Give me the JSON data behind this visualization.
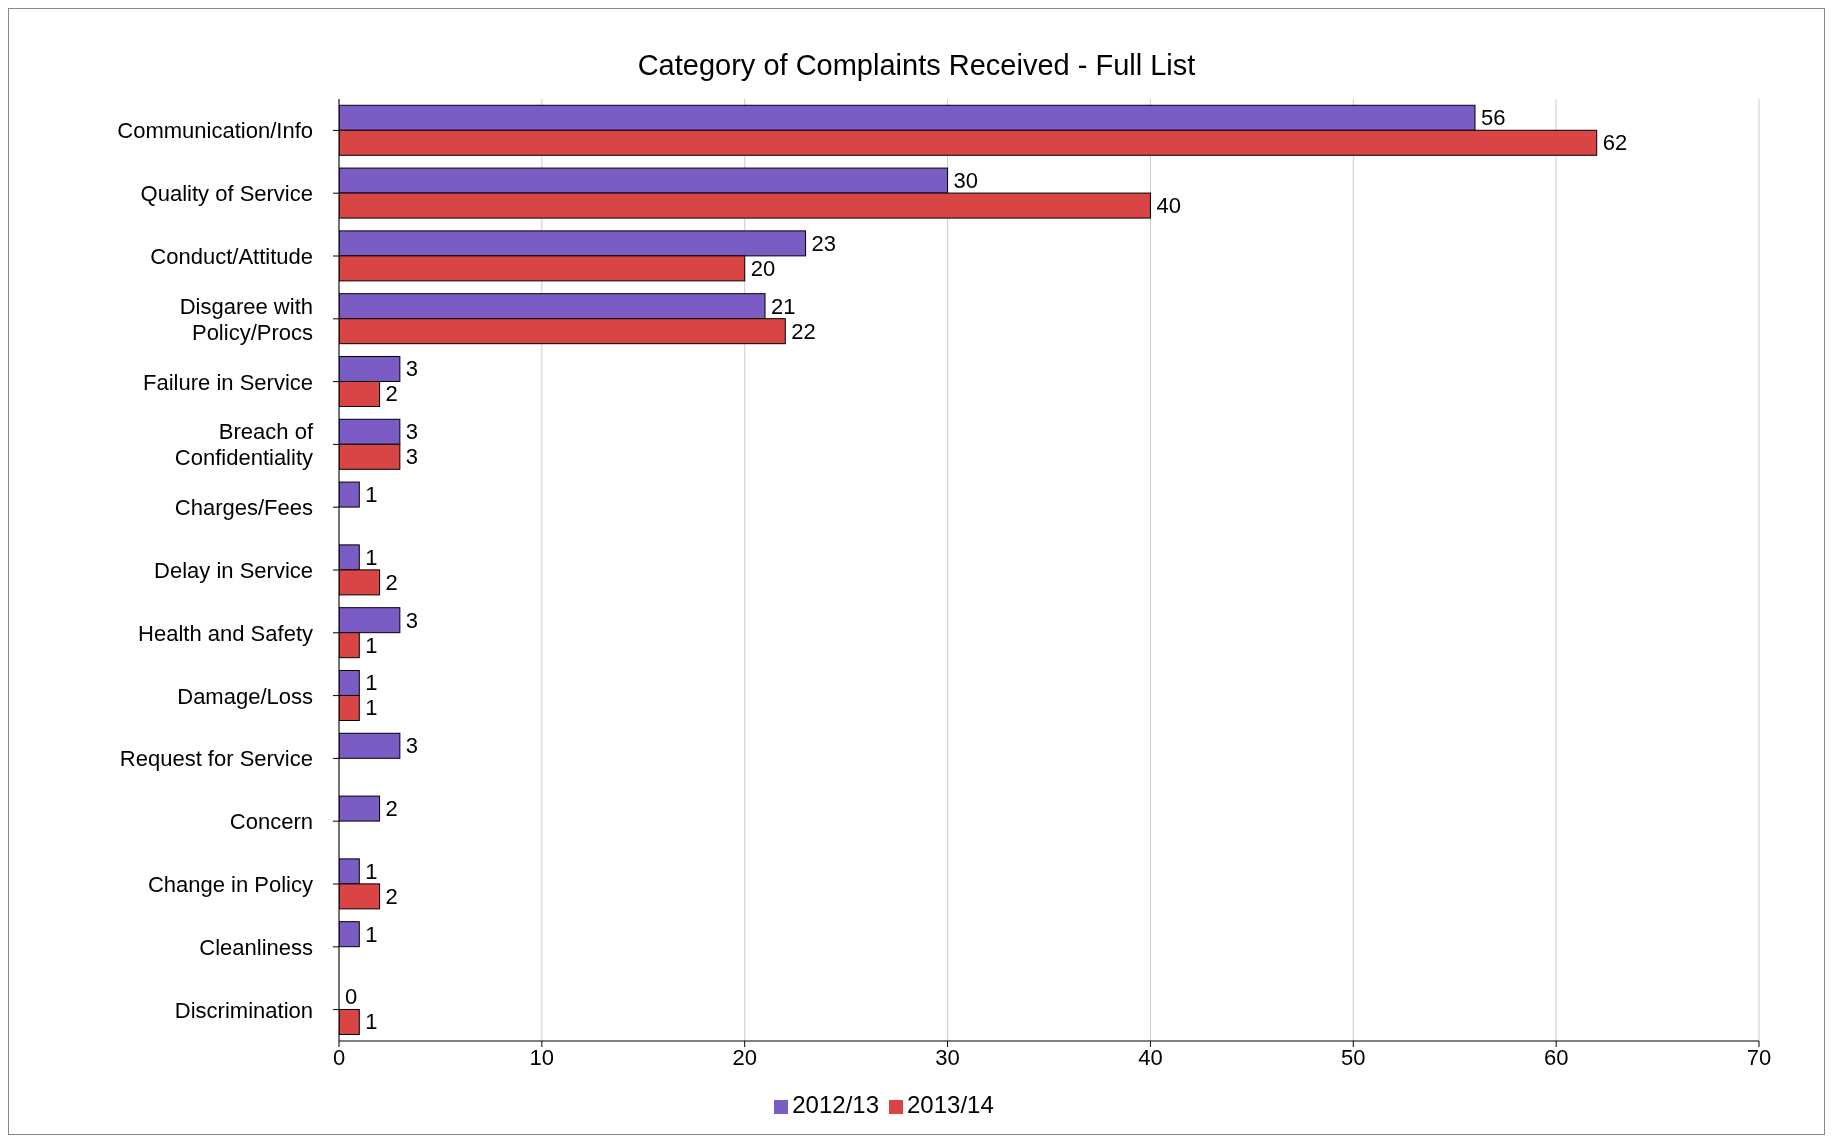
{
  "chart_data": {
    "type": "bar",
    "orientation": "horizontal",
    "title": "Category of Complaints Received - Full List",
    "categories": [
      "Communication/Info",
      "Quality of Service",
      "Conduct/Attitude",
      "Disgaree with Policy/Procs",
      "Failure in Service",
      "Breach of Confidentiality",
      "Charges/Fees",
      "Delay in Service",
      "Health and Safety",
      "Damage/Loss",
      "Request for Service",
      "Concern",
      "Change in Policy",
      "Cleanliness",
      "Discrimination"
    ],
    "series": [
      {
        "name": "2012/13",
        "color": "#7b5cc4",
        "values": [
          56,
          30,
          23,
          21,
          3,
          3,
          1,
          1,
          3,
          1,
          3,
          2,
          1,
          1,
          0
        ]
      },
      {
        "name": "2013/14",
        "color": "#d94545",
        "values": [
          62,
          40,
          20,
          22,
          2,
          3,
          null,
          2,
          1,
          1,
          null,
          null,
          2,
          null,
          1
        ]
      }
    ],
    "xlim": [
      0,
      70
    ],
    "xticks": [
      0,
      10,
      20,
      30,
      40,
      50,
      60,
      70
    ],
    "grid": "x",
    "legend": "bottom",
    "data_labels": true
  }
}
